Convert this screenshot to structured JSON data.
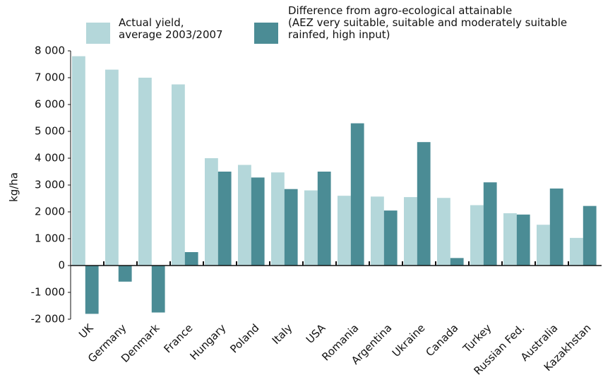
{
  "chart_data": {
    "type": "bar",
    "y_label": "kg/ha",
    "categories": [
      "UK",
      "Germany",
      "Denmark",
      "France",
      "Hungary",
      "Poland",
      "Italy",
      "USA",
      "Romania",
      "Argentina",
      "Ukraine",
      "Canada",
      "Turkey",
      "Russian Fed.",
      "Australia",
      "Kazakhstan"
    ],
    "series": [
      {
        "name": "Actual yield,\naverage 2003/2007",
        "color": "#b4d7da",
        "values": [
          7800,
          7300,
          7000,
          6750,
          4000,
          3750,
          3470,
          2800,
          2600,
          2570,
          2550,
          2520,
          2250,
          1950,
          1520,
          1030
        ]
      },
      {
        "name": "Difference from agro-ecological attainable\n(AEZ very suitable, suitable and moderately suitable\nrainfed, high input)",
        "color": "#4b8c95",
        "values": [
          -1800,
          -600,
          -1750,
          500,
          3500,
          3280,
          2850,
          3500,
          5300,
          2050,
          4600,
          280,
          3100,
          1900,
          2870,
          2220
        ]
      }
    ],
    "ylim": [
      -2000,
      8000
    ],
    "yticks": [
      {
        "value": -2000,
        "label": "-2 000"
      },
      {
        "value": -1000,
        "label": "-1 000"
      },
      0,
      {
        "value": 1000,
        "label": "1 000"
      },
      {
        "value": 2000,
        "label": "2 000"
      },
      {
        "value": 3000,
        "label": "3 000"
      },
      {
        "value": 4000,
        "label": "4 000"
      },
      {
        "value": 5000,
        "label": "5 000"
      },
      {
        "value": 6000,
        "label": "6 000"
      },
      {
        "value": 7000,
        "label": "7 000"
      },
      {
        "value": 8000,
        "label": "8 000"
      }
    ],
    "grid": false
  }
}
